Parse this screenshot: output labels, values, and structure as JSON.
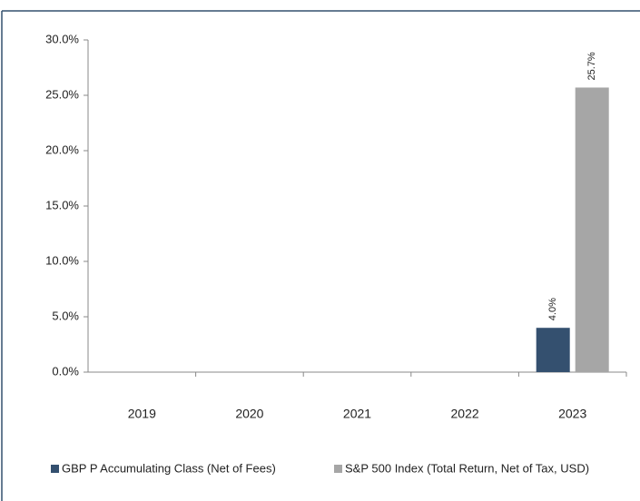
{
  "chart_data": {
    "type": "bar",
    "categories": [
      "2019",
      "2020",
      "2021",
      "2022",
      "2023"
    ],
    "series": [
      {
        "name": "GBP P Accumulating Class (Net of Fees)",
        "color": "#34506f",
        "values": [
          null,
          null,
          null,
          null,
          4.0
        ],
        "value_labels": [
          null,
          null,
          null,
          null,
          "4.0%"
        ]
      },
      {
        "name": "S&P 500 Index (Total Return, Net of Tax, USD)",
        "color": "#a6a6a6",
        "values": [
          null,
          null,
          null,
          null,
          25.7
        ],
        "value_labels": [
          null,
          null,
          null,
          null,
          "25.7%"
        ]
      }
    ],
    "ylim": [
      0,
      30
    ],
    "yticks": [
      {
        "value": 0,
        "label": "0.0%"
      },
      {
        "value": 5,
        "label": "5.0%"
      },
      {
        "value": 10,
        "label": "10.0%"
      },
      {
        "value": 15,
        "label": "15.0%"
      },
      {
        "value": 20,
        "label": "20.0%"
      },
      {
        "value": 25,
        "label": "25.0%"
      },
      {
        "value": 30,
        "label": "30.0%"
      }
    ],
    "grid": false,
    "legend": "bottom"
  }
}
